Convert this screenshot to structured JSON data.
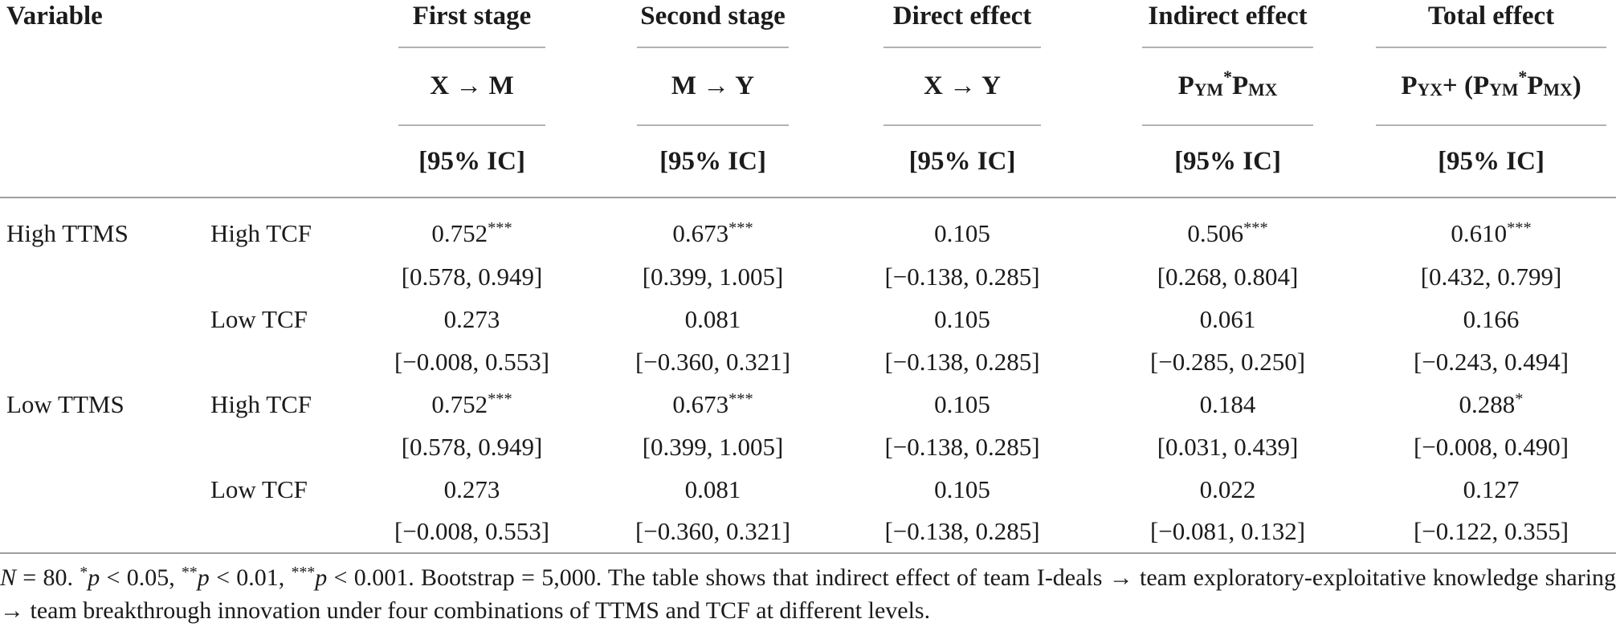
{
  "table": {
    "variable_header": "Variable",
    "ci_label": "[95% IC]",
    "columns": [
      {
        "title": "First stage",
        "formula": "X → M"
      },
      {
        "title": "Second stage",
        "formula": "M → Y"
      },
      {
        "title": "Direct effect",
        "formula": "X → Y"
      },
      {
        "title": "Indirect effect",
        "formula": "P_{YM}^{*}P_{MX}"
      },
      {
        "title": "Total effect",
        "formula": "P_{YX} + (P_{YM}^{*}P_{MX})"
      }
    ],
    "rows": [
      {
        "ttms": "High TTMS",
        "tcf": "High TCF",
        "values": [
          "0.752^{***}",
          "0.673^{***}",
          "0.105",
          "0.506^{***}",
          "0.610^{***}"
        ],
        "ci": [
          "[0.578, 0.949]",
          "[0.399, 1.005]",
          "[−0.138, 0.285]",
          "[0.268, 0.804]",
          "[0.432, 0.799]"
        ]
      },
      {
        "ttms": "",
        "tcf": "Low TCF",
        "values": [
          "0.273",
          "0.081",
          "0.105",
          "0.061",
          "0.166"
        ],
        "ci": [
          "[−0.008, 0.553]",
          "[−0.360, 0.321]",
          "[−0.138, 0.285]",
          "[−0.285, 0.250]",
          "[−0.243, 0.494]"
        ]
      },
      {
        "ttms": "Low TTMS",
        "tcf": "High TCF",
        "values": [
          "0.752^{***}",
          "0.673^{***}",
          "0.105",
          "0.184",
          "0.288^{*}"
        ],
        "ci": [
          "[0.578, 0.949]",
          "[0.399, 1.005]",
          "[−0.138, 0.285]",
          "[0.031, 0.439]",
          "[−0.008, 0.490]"
        ]
      },
      {
        "ttms": "",
        "tcf": "Low TCF",
        "values": [
          "0.273",
          "0.081",
          "0.105",
          "0.022",
          "0.127"
        ],
        "ci": [
          "[−0.008, 0.553]",
          "[−0.360, 0.321]",
          "[−0.138, 0.285]",
          "[−0.081, 0.132]",
          "[−0.122, 0.355]"
        ]
      }
    ]
  },
  "footnote": "//N// = 80. ^{*}//p// < 0.05, ^{**}//p// < 0.01, ^{***}//p// < 0.001. Bootstrap = 5,000. The table shows that indirect effect of team I-deals → team exploratory-exploitative knowledge sharing → team breakthrough innovation under four combinations of TTMS and TCF at different levels."
}
